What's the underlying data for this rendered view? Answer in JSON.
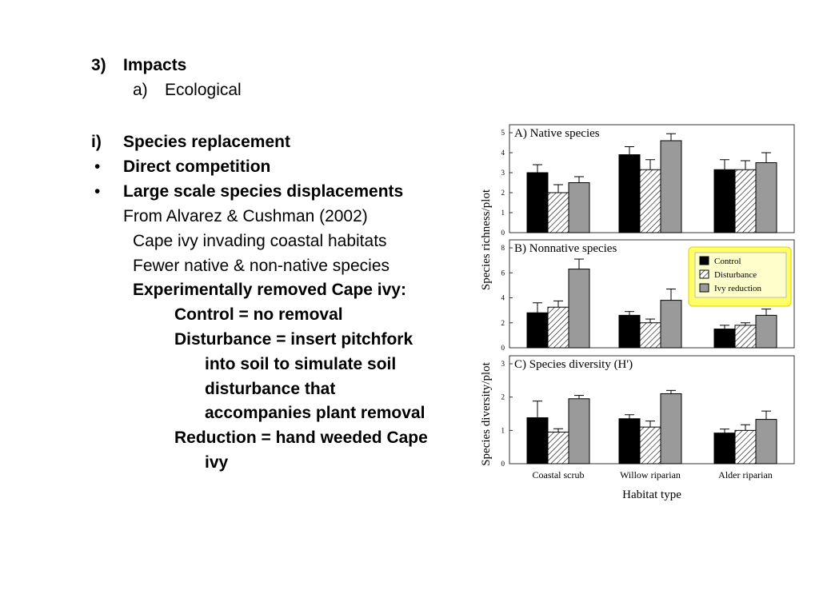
{
  "slide": {
    "heading": {
      "number": "3)",
      "text": "Impacts"
    },
    "subheading": {
      "number": "a)",
      "text": "Ecological"
    },
    "items": [
      {
        "marker": "i)",
        "text": "Species replacement"
      },
      {
        "marker": "•",
        "text": "Direct competition"
      },
      {
        "marker": "•",
        "text": "Large scale species displacements"
      }
    ],
    "source": "From Alvarez & Cushman (2002)",
    "notes": [
      "Cape ivy invading coastal habitats",
      "Fewer native & non-native species"
    ],
    "experiment_title": "Experimentally removed Cape ivy:",
    "control_line": "Control = no removal",
    "disturbance_lines": [
      "Disturbance = insert pitchfork",
      "into soil to simulate soil",
      "disturbance that",
      "accompanies plant removal"
    ],
    "reduction_lines": [
      "Reduction = hand weeded Cape",
      "ivy"
    ]
  },
  "chart_data": {
    "type": "bar",
    "categories": [
      "Coastal  scrub",
      "Willow  riparian",
      "Alder  riparian"
    ],
    "xlabel": "Habitat type",
    "legend": {
      "placement": "right of panel B, highlighted yellow",
      "entries": [
        "Control",
        "Disturbance",
        "Ivy reduction"
      ]
    },
    "series_styles": {
      "Control": "#000000",
      "Disturbance": "hatched",
      "Ivy reduction": "#9a9a9a"
    },
    "highlight_color": "#ffff66",
    "panels": [
      {
        "title": "A) Native  species",
        "ylabel": "Species  richness/plot",
        "ylim": [
          0,
          5
        ],
        "yticks": [
          "0",
          "1",
          "2",
          "3",
          "4",
          "5"
        ],
        "series": [
          {
            "name": "Control",
            "values": [
              3.0,
              3.9,
              3.15
            ],
            "errors": [
              0.4,
              0.4,
              0.5
            ]
          },
          {
            "name": "Disturbance",
            "values": [
              2.0,
              3.15,
              3.15
            ],
            "errors": [
              0.4,
              0.5,
              0.45
            ]
          },
          {
            "name": "Ivy reduction",
            "values": [
              2.5,
              4.6,
              3.5
            ],
            "errors": [
              0.3,
              0.35,
              0.5
            ]
          }
        ]
      },
      {
        "title": "B) Nonnative  species",
        "ylabel": "Species  richness/plot",
        "ylim": [
          0,
          8
        ],
        "yticks": [
          "0",
          "2",
          "4",
          "6",
          "8"
        ],
        "series": [
          {
            "name": "Control",
            "values": [
              2.8,
              2.6,
              1.5
            ],
            "errors": [
              0.8,
              0.3,
              0.3
            ]
          },
          {
            "name": "Disturbance",
            "values": [
              3.25,
              2.0,
              1.8
            ],
            "errors": [
              0.5,
              0.3,
              0.2
            ]
          },
          {
            "name": "Ivy reduction",
            "values": [
              6.3,
              3.8,
              2.6
            ],
            "errors": [
              0.8,
              0.9,
              0.5
            ]
          }
        ]
      },
      {
        "title": "C) Species  diversity (H')",
        "ylabel": "Species  diversity/plot",
        "ylim": [
          0,
          3
        ],
        "yticks": [
          "0",
          "1",
          "2",
          "3"
        ],
        "series": [
          {
            "name": "Control",
            "values": [
              1.38,
              1.35,
              0.92
            ],
            "errors": [
              0.5,
              0.12,
              0.12
            ]
          },
          {
            "name": "Disturbance",
            "values": [
              0.95,
              1.1,
              1.0
            ],
            "errors": [
              0.1,
              0.18,
              0.17
            ]
          },
          {
            "name": "Ivy reduction",
            "values": [
              1.95,
              2.1,
              1.33
            ],
            "errors": [
              0.1,
              0.1,
              0.25
            ]
          }
        ]
      }
    ]
  }
}
